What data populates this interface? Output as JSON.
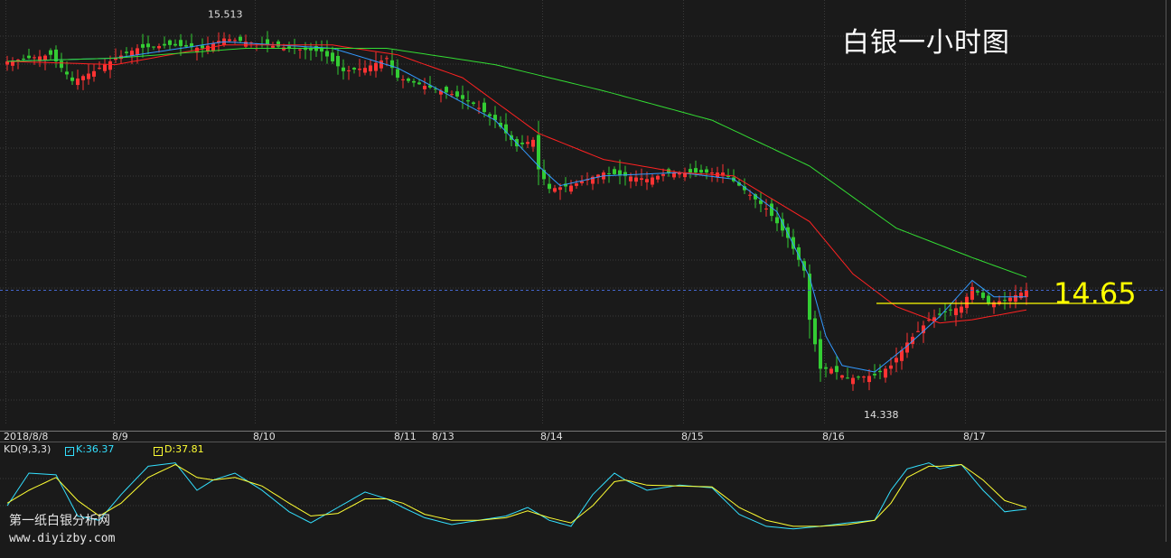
{
  "title": "白银一小时图",
  "price_marker": "14.65",
  "watermark": {
    "line1": "第一纸白银分析网",
    "line2": "www.diyizby.com"
  },
  "colors": {
    "background": "#1a1a1a",
    "grid": "#3a3a3a",
    "up_candle": "#ff3333",
    "down_candle": "#33cc33",
    "ma_short": "#3399ff",
    "ma_mid": "#ff2222",
    "ma_long": "#33dd33",
    "kd_k": "#33e0ff",
    "kd_d": "#ffff33",
    "price_line": "#ffff00",
    "current_price_line": "#4466cc"
  },
  "chart_data": [
    {
      "type": "candlestick",
      "x_tick_labels": [
        "2018/8/8",
        "8/9",
        "8/10",
        "8/11",
        "8/13",
        "8/14",
        "8/15",
        "8/16",
        "8/17"
      ],
      "x_tick_index": [
        0,
        20,
        46,
        72,
        79,
        99,
        125,
        151,
        177
      ],
      "ylim": [
        14.28,
        15.55
      ],
      "annotations": [
        {
          "text": "15.513",
          "index": 40,
          "value": 15.513,
          "role": "high"
        },
        {
          "text": "14.338",
          "index": 161,
          "value": 14.338,
          "role": "low"
        }
      ],
      "price_line_value": 14.65,
      "current_price_value": 14.69,
      "anchors": [
        [
          0,
          15.39
        ],
        [
          8,
          15.41
        ],
        [
          12,
          15.33
        ],
        [
          16,
          15.36
        ],
        [
          20,
          15.4
        ],
        [
          24,
          15.43
        ],
        [
          30,
          15.44
        ],
        [
          36,
          15.43
        ],
        [
          40,
          15.46
        ],
        [
          44,
          15.45
        ],
        [
          52,
          15.43
        ],
        [
          58,
          15.42
        ],
        [
          62,
          15.36
        ],
        [
          66,
          15.37
        ],
        [
          70,
          15.4
        ],
        [
          72,
          15.34
        ],
        [
          78,
          15.31
        ],
        [
          82,
          15.29
        ],
        [
          86,
          15.26
        ],
        [
          90,
          15.21
        ],
        [
          94,
          15.13
        ],
        [
          97,
          15.15
        ],
        [
          98,
          15.06
        ],
        [
          100,
          15.0
        ],
        [
          104,
          15.01
        ],
        [
          110,
          15.05
        ],
        [
          114,
          15.04
        ],
        [
          118,
          15.03
        ],
        [
          122,
          15.05
        ],
        [
          126,
          15.05
        ],
        [
          132,
          15.05
        ],
        [
          135,
          15.01
        ],
        [
          140,
          14.94
        ],
        [
          144,
          14.85
        ],
        [
          147,
          14.75
        ],
        [
          148,
          14.6
        ],
        [
          150,
          14.45
        ],
        [
          152,
          14.45
        ],
        [
          155,
          14.42
        ],
        [
          160,
          14.43
        ],
        [
          163,
          14.46
        ],
        [
          166,
          14.53
        ],
        [
          170,
          14.6
        ],
        [
          174,
          14.63
        ],
        [
          176,
          14.64
        ],
        [
          178,
          14.7
        ],
        [
          181,
          14.65
        ],
        [
          184,
          14.66
        ],
        [
          188,
          14.69
        ]
      ],
      "ma_lines": [
        {
          "period": 5,
          "anchors": [
            [
              0,
              15.39
            ],
            [
              20,
              15.4
            ],
            [
              40,
              15.45
            ],
            [
              60,
              15.43
            ],
            [
              72,
              15.37
            ],
            [
              80,
              15.3
            ],
            [
              90,
              15.21
            ],
            [
              98,
              15.07
            ],
            [
              102,
              15.01
            ],
            [
              110,
              15.04
            ],
            [
              124,
              15.05
            ],
            [
              134,
              15.03
            ],
            [
              142,
              14.93
            ],
            [
              148,
              14.73
            ],
            [
              151,
              14.55
            ],
            [
              154,
              14.46
            ],
            [
              160,
              14.44
            ],
            [
              166,
              14.52
            ],
            [
              172,
              14.61
            ],
            [
              178,
              14.72
            ],
            [
              182,
              14.67
            ],
            [
              188,
              14.67
            ]
          ]
        },
        {
          "period": 20,
          "anchors": [
            [
              0,
              15.39
            ],
            [
              20,
              15.38
            ],
            [
              40,
              15.44
            ],
            [
              60,
              15.44
            ],
            [
              72,
              15.41
            ],
            [
              84,
              15.34
            ],
            [
              98,
              15.17
            ],
            [
              110,
              15.09
            ],
            [
              124,
              15.05
            ],
            [
              134,
              15.04
            ],
            [
              148,
              14.9
            ],
            [
              156,
              14.74
            ],
            [
              164,
              14.64
            ],
            [
              172,
              14.59
            ],
            [
              178,
              14.6
            ],
            [
              188,
              14.63
            ]
          ]
        },
        {
          "period": 60,
          "anchors": [
            [
              0,
              15.39
            ],
            [
              20,
              15.4
            ],
            [
              44,
              15.43
            ],
            [
              70,
              15.43
            ],
            [
              90,
              15.38
            ],
            [
              110,
              15.3
            ],
            [
              130,
              15.21
            ],
            [
              148,
              15.07
            ],
            [
              164,
              14.88
            ],
            [
              178,
              14.79
            ],
            [
              188,
              14.73
            ]
          ]
        }
      ]
    },
    {
      "type": "line",
      "indicator": "KD(9,3,3)",
      "series": [
        {
          "name": "K",
          "last_value": 36.37,
          "label": "K:36.37"
        },
        {
          "name": "D",
          "last_value": 37.81,
          "label": "D:37.81"
        }
      ],
      "ylim": [
        0,
        100
      ],
      "k_anchors": [
        [
          0,
          42
        ],
        [
          4,
          80
        ],
        [
          9,
          78
        ],
        [
          13,
          30
        ],
        [
          17,
          25
        ],
        [
          21,
          55
        ],
        [
          26,
          88
        ],
        [
          31,
          92
        ],
        [
          35,
          60
        ],
        [
          38,
          72
        ],
        [
          42,
          80
        ],
        [
          47,
          60
        ],
        [
          52,
          35
        ],
        [
          56,
          22
        ],
        [
          61,
          40
        ],
        [
          66,
          58
        ],
        [
          70,
          50
        ],
        [
          73,
          40
        ],
        [
          77,
          28
        ],
        [
          82,
          20
        ],
        [
          87,
          25
        ],
        [
          92,
          30
        ],
        [
          96,
          40
        ],
        [
          100,
          25
        ],
        [
          104,
          18
        ],
        [
          108,
          55
        ],
        [
          112,
          80
        ],
        [
          114,
          72
        ],
        [
          118,
          60
        ],
        [
          124,
          66
        ],
        [
          130,
          63
        ],
        [
          135,
          32
        ],
        [
          140,
          18
        ],
        [
          145,
          15
        ],
        [
          150,
          18
        ],
        [
          155,
          22
        ],
        [
          160,
          25
        ],
        [
          163,
          60
        ],
        [
          166,
          85
        ],
        [
          170,
          92
        ],
        [
          172,
          85
        ],
        [
          176,
          90
        ],
        [
          180,
          60
        ],
        [
          184,
          35
        ],
        [
          188,
          38
        ]
      ],
      "d_anchors": [
        [
          0,
          45
        ],
        [
          4,
          60
        ],
        [
          9,
          75
        ],
        [
          13,
          48
        ],
        [
          17,
          30
        ],
        [
          21,
          45
        ],
        [
          26,
          75
        ],
        [
          31,
          90
        ],
        [
          35,
          75
        ],
        [
          38,
          72
        ],
        [
          42,
          75
        ],
        [
          47,
          65
        ],
        [
          52,
          45
        ],
        [
          56,
          30
        ],
        [
          61,
          33
        ],
        [
          66,
          50
        ],
        [
          70,
          50
        ],
        [
          73,
          45
        ],
        [
          77,
          32
        ],
        [
          82,
          25
        ],
        [
          87,
          25
        ],
        [
          92,
          28
        ],
        [
          96,
          36
        ],
        [
          100,
          28
        ],
        [
          104,
          22
        ],
        [
          108,
          42
        ],
        [
          112,
          70
        ],
        [
          114,
          72
        ],
        [
          118,
          66
        ],
        [
          124,
          65
        ],
        [
          130,
          64
        ],
        [
          135,
          40
        ],
        [
          140,
          25
        ],
        [
          145,
          18
        ],
        [
          150,
          18
        ],
        [
          155,
          20
        ],
        [
          160,
          25
        ],
        [
          163,
          45
        ],
        [
          166,
          75
        ],
        [
          170,
          88
        ],
        [
          172,
          88
        ],
        [
          176,
          90
        ],
        [
          180,
          72
        ],
        [
          184,
          48
        ],
        [
          188,
          40
        ]
      ]
    }
  ]
}
